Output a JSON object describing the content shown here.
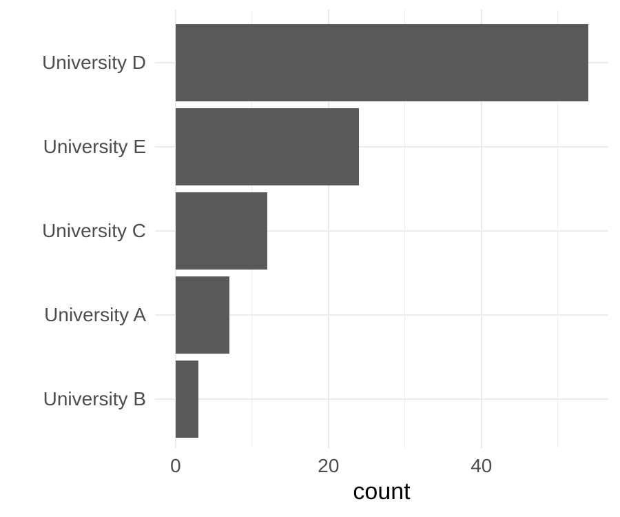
{
  "chart_data": {
    "type": "bar",
    "orientation": "horizontal",
    "title": "",
    "xlabel": "count",
    "ylabel": "",
    "categories": [
      "University D",
      "University E",
      "University C",
      "University A",
      "University B"
    ],
    "values": [
      54,
      24,
      12,
      7,
      3
    ],
    "x_ticks_major": [
      0,
      20,
      40
    ],
    "x_ticks_minor": [
      10,
      30,
      50
    ],
    "xlim": [
      -2.7,
      56.6
    ],
    "grid": true,
    "legend_position": "none",
    "colors": {
      "bar_fill": "#595959",
      "grid_major": "#ebebeb",
      "grid_minor": "#ededed",
      "axis_text": "#4d4d4d",
      "axis_title": "#000000",
      "background": "#ffffff"
    }
  }
}
